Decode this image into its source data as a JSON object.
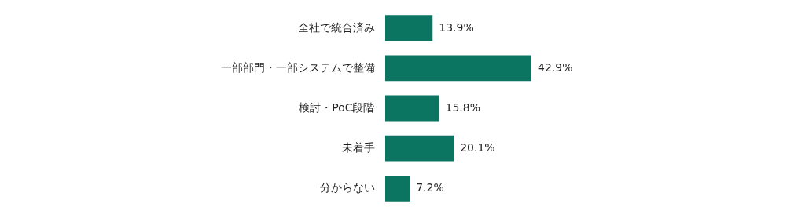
{
  "chart_data": {
    "type": "bar",
    "orientation": "horizontal",
    "categories": [
      "全社で統合済み",
      "一部部門・一部システムで整備",
      "検討・PoC段階",
      "未着手",
      "分からない"
    ],
    "values": [
      13.9,
      42.9,
      15.8,
      20.1,
      7.2
    ],
    "value_labels": [
      "13.9%",
      "42.9%",
      "15.8%",
      "20.1%",
      "7.2%"
    ],
    "color": "#0b7562"
  }
}
